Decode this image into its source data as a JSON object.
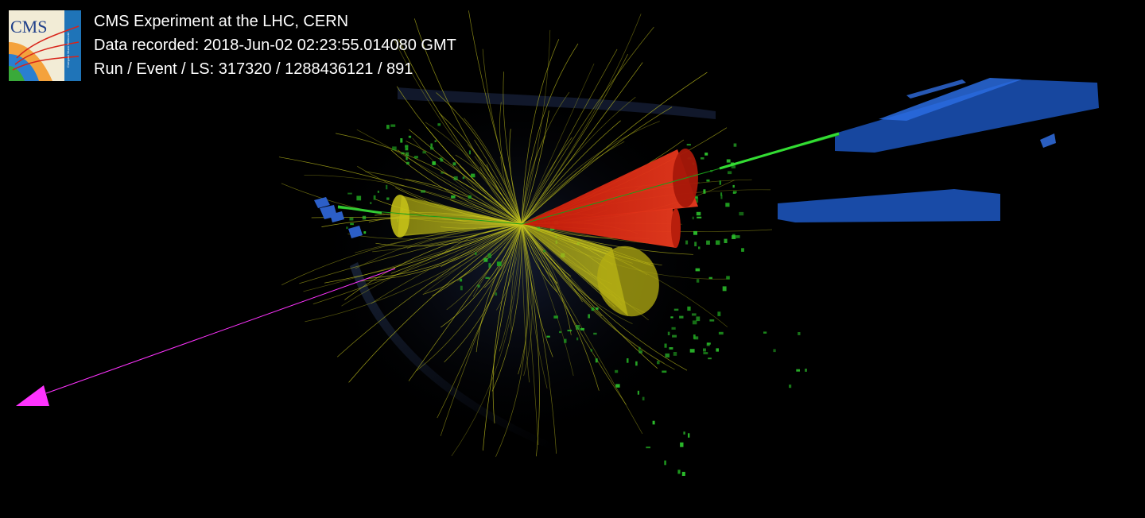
{
  "header": {
    "line1": "CMS Experiment at the LHC, CERN",
    "line2": "Data recorded: 2018-Jun-02 02:23:55.014080 GMT",
    "line3": "Run / Event / LS: 317320 / 1288436121 / 891"
  },
  "logo": {
    "text": "CMS",
    "subtext": "Compact Muon Solenoid"
  },
  "colors": {
    "background": "#000000",
    "text": "#ffffff",
    "tracks": "#c8c81e",
    "jet_red": "#e0220f",
    "jet_yellow": "#d9d61a",
    "muon_track": "#22cc22",
    "hits": "#1a9e1a",
    "muon_chambers": "#1e5fc8",
    "met_arrow": "#ff33ff"
  }
}
